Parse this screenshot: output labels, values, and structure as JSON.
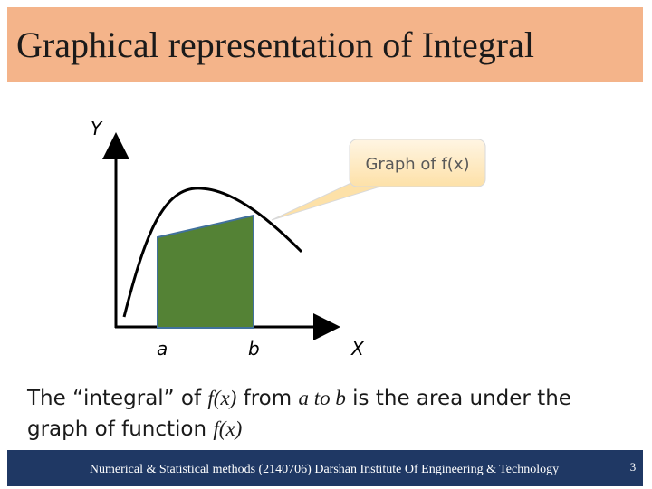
{
  "header": {
    "title": "Graphical representation of Integral"
  },
  "diagram": {
    "y_axis_label": "Y",
    "x_axis_label": "X",
    "lower_limit": "a",
    "upper_limit": "b",
    "callout": "Graph of f(x)"
  },
  "body": {
    "line1": [
      "The “integral” of ",
      "f(x)",
      " from ",
      "a to b",
      " is the area under the"
    ],
    "line2": [
      "graph of function ",
      "f(x)"
    ]
  },
  "footer": {
    "text": "Numerical & Statistical methods (2140706)   Darshan Institute Of Engineering & Technology",
    "page": "3"
  }
}
